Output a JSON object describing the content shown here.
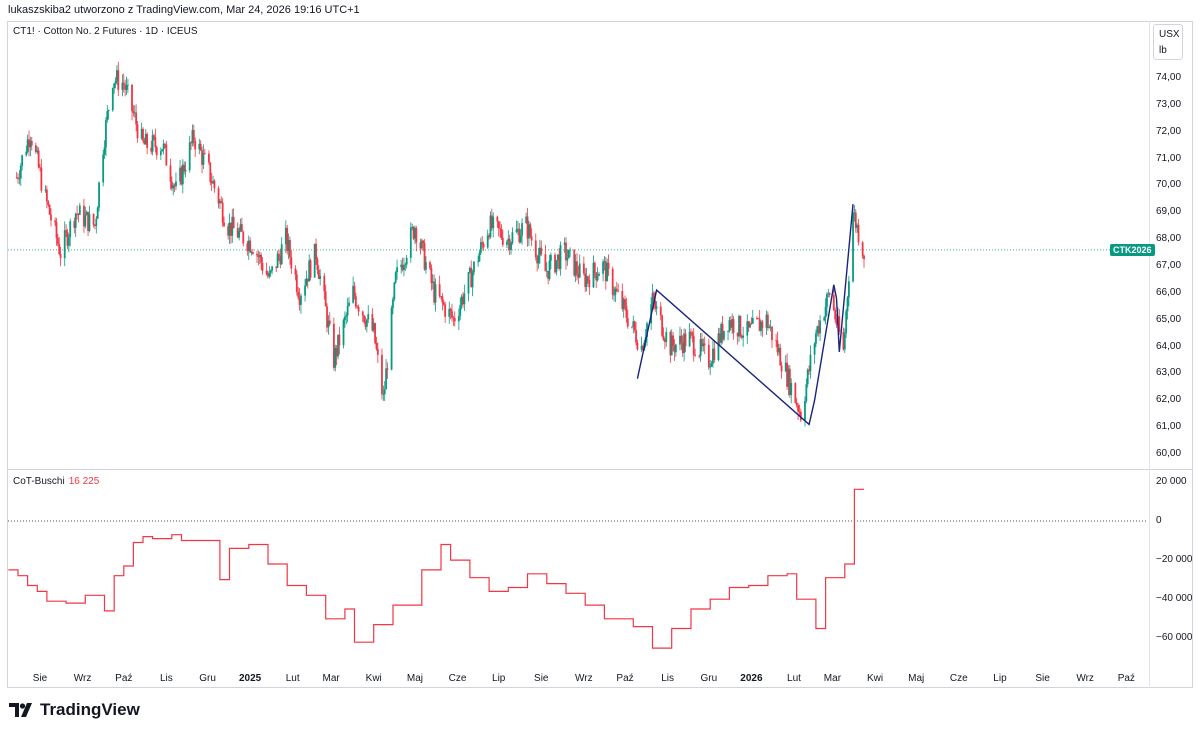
{
  "header": {
    "caption": "lukaszskiba2 utworzono z TradingView.com, Mar 24, 2026 19:16 UTC+1"
  },
  "price_pane": {
    "symbol": "CT1! · Cotton No. 2 Futures · 1D · ICEUS",
    "unit_currency": "USX",
    "unit_measure": "lb",
    "last_price_badge": "CTK2026",
    "y_tick_labels": [
      "74,00",
      "73,00",
      "72,00",
      "71,00",
      "70,00",
      "69,00",
      "68,00",
      "67,00",
      "66,00",
      "65,00",
      "64,00",
      "63,00",
      "62,00",
      "61,00",
      "60,00"
    ]
  },
  "indicator_pane": {
    "name": "CoT-Buschi",
    "value": "16 225",
    "y_tick_labels": [
      "20 000",
      "0",
      "−20 000",
      "−40 000",
      "−60 000"
    ]
  },
  "x_axis": {
    "labels": [
      {
        "text": "Sie",
        "bold": false
      },
      {
        "text": "Wrz",
        "bold": false
      },
      {
        "text": "Paź",
        "bold": false
      },
      {
        "text": "Lis",
        "bold": false
      },
      {
        "text": "Gru",
        "bold": false
      },
      {
        "text": "2025",
        "bold": true
      },
      {
        "text": "Lut",
        "bold": false
      },
      {
        "text": "Mar",
        "bold": false
      },
      {
        "text": "Kwi",
        "bold": false
      },
      {
        "text": "Maj",
        "bold": false
      },
      {
        "text": "Cze",
        "bold": false
      },
      {
        "text": "Lip",
        "bold": false
      },
      {
        "text": "Sie",
        "bold": false
      },
      {
        "text": "Wrz",
        "bold": false
      },
      {
        "text": "Paź",
        "bold": false
      },
      {
        "text": "Lis",
        "bold": false
      },
      {
        "text": "Gru",
        "bold": false
      },
      {
        "text": "2026",
        "bold": true
      },
      {
        "text": "Lut",
        "bold": false
      },
      {
        "text": "Mar",
        "bold": false
      },
      {
        "text": "Kwi",
        "bold": false
      },
      {
        "text": "Maj",
        "bold": false
      },
      {
        "text": "Cze",
        "bold": false
      },
      {
        "text": "Lip",
        "bold": false
      },
      {
        "text": "Sie",
        "bold": false
      },
      {
        "text": "Wrz",
        "bold": false
      },
      {
        "text": "Paź",
        "bold": false
      }
    ]
  },
  "branding": {
    "logo_text": "TradingView"
  },
  "colors": {
    "up": "#089981",
    "down": "#f23645",
    "pattern_line": "#1a237e",
    "last_price_line": "#089981",
    "indicator_line": "#f23645"
  },
  "chart_data": [
    {
      "type": "candlestick",
      "title": "CT1! · Cotton No. 2 Futures · 1D · ICEUS",
      "ylim": [
        59.6,
        75.2
      ],
      "last_price": 67.6,
      "price_path": [
        {
          "date": "2024-07-15",
          "price": 70.3
        },
        {
          "date": "2024-07-25",
          "price": 72.0
        },
        {
          "date": "2024-08-05",
          "price": 69.5
        },
        {
          "date": "2024-08-16",
          "price": 67.5
        },
        {
          "date": "2024-08-27",
          "price": 69.0
        },
        {
          "date": "2024-09-10",
          "price": 68.5
        },
        {
          "date": "2024-09-16",
          "price": 71.5
        },
        {
          "date": "2024-09-23",
          "price": 74.0
        },
        {
          "date": "2024-10-01",
          "price": 73.8
        },
        {
          "date": "2024-10-15",
          "price": 71.5
        },
        {
          "date": "2024-10-29",
          "price": 71.5
        },
        {
          "date": "2024-11-08",
          "price": 69.8
        },
        {
          "date": "2024-11-21",
          "price": 71.8
        },
        {
          "date": "2024-12-02",
          "price": 70.5
        },
        {
          "date": "2024-12-16",
          "price": 68.5
        },
        {
          "date": "2025-01-03",
          "price": 67.8
        },
        {
          "date": "2025-01-15",
          "price": 66.5
        },
        {
          "date": "2025-01-27",
          "price": 68.0
        },
        {
          "date": "2025-02-06",
          "price": 66.0
        },
        {
          "date": "2025-02-18",
          "price": 67.5
        },
        {
          "date": "2025-03-03",
          "price": 63.5
        },
        {
          "date": "2025-03-17",
          "price": 66.0
        },
        {
          "date": "2025-04-01",
          "price": 64.5
        },
        {
          "date": "2025-04-08",
          "price": 62.0
        },
        {
          "date": "2025-04-17",
          "price": 66.5
        },
        {
          "date": "2025-05-01",
          "price": 68.5
        },
        {
          "date": "2025-05-15",
          "price": 66.0
        },
        {
          "date": "2025-05-29",
          "price": 65.0
        },
        {
          "date": "2025-06-10",
          "price": 66.5
        },
        {
          "date": "2025-06-24",
          "price": 68.5
        },
        {
          "date": "2025-07-08",
          "price": 68.0
        },
        {
          "date": "2025-07-21",
          "price": 68.5
        },
        {
          "date": "2025-08-04",
          "price": 66.8
        },
        {
          "date": "2025-08-18",
          "price": 67.5
        },
        {
          "date": "2025-09-01",
          "price": 66.5
        },
        {
          "date": "2025-09-15",
          "price": 67.0
        },
        {
          "date": "2025-09-29",
          "price": 65.5
        },
        {
          "date": "2025-10-13",
          "price": 64.0
        },
        {
          "date": "2025-10-21",
          "price": 65.7
        },
        {
          "date": "2025-11-03",
          "price": 64.0
        },
        {
          "date": "2025-11-17",
          "price": 64.3
        },
        {
          "date": "2025-12-01",
          "price": 63.5
        },
        {
          "date": "2025-12-15",
          "price": 65.0
        },
        {
          "date": "2025-12-29",
          "price": 64.5
        },
        {
          "date": "2026-01-12",
          "price": 65.0
        },
        {
          "date": "2026-01-23",
          "price": 63.5
        },
        {
          "date": "2026-02-06",
          "price": 61.5
        },
        {
          "date": "2026-02-17",
          "price": 64.5
        },
        {
          "date": "2026-02-27",
          "price": 66.0
        },
        {
          "date": "2026-03-09",
          "price": 63.8
        },
        {
          "date": "2026-03-16",
          "price": 69.0
        },
        {
          "date": "2026-03-24",
          "price": 67.5
        }
      ],
      "pattern_lines": [
        {
          "x": "2025-10-10",
          "y": 62.8
        },
        {
          "x": "2025-10-24",
          "y": 66.1
        },
        {
          "x": "2026-02-12",
          "y": 61.1
        },
        {
          "x": "2026-02-16",
          "y": 62.0
        },
        {
          "x": "2026-03-02",
          "y": 66.3
        },
        {
          "x": "2026-03-04",
          "y": 65.8
        },
        {
          "x": "2026-03-06",
          "y": 63.8
        },
        {
          "x": "2026-03-16",
          "y": 69.3
        }
      ]
    },
    {
      "type": "line",
      "title": "CoT-Buschi",
      "ylim": [
        -70000,
        24000
      ],
      "last_value": 16225,
      "points": [
        {
          "date": "2024-07-09",
          "value": -25000
        },
        {
          "date": "2024-07-16",
          "value": -28000
        },
        {
          "date": "2024-07-23",
          "value": -33000
        },
        {
          "date": "2024-07-30",
          "value": -36000
        },
        {
          "date": "2024-08-06",
          "value": -41000
        },
        {
          "date": "2024-08-20",
          "value": -42000
        },
        {
          "date": "2024-09-03",
          "value": -38000
        },
        {
          "date": "2024-09-17",
          "value": -46000
        },
        {
          "date": "2024-09-24",
          "value": -28000
        },
        {
          "date": "2024-10-01",
          "value": -23000
        },
        {
          "date": "2024-10-08",
          "value": -11000
        },
        {
          "date": "2024-10-15",
          "value": -8000
        },
        {
          "date": "2024-10-22",
          "value": -9000
        },
        {
          "date": "2024-11-05",
          "value": -7000
        },
        {
          "date": "2024-11-12",
          "value": -10000
        },
        {
          "date": "2024-12-03",
          "value": -10000
        },
        {
          "date": "2024-12-10",
          "value": -30000
        },
        {
          "date": "2024-12-17",
          "value": -14000
        },
        {
          "date": "2024-12-31",
          "value": -12000
        },
        {
          "date": "2025-01-14",
          "value": -22000
        },
        {
          "date": "2025-01-28",
          "value": -33000
        },
        {
          "date": "2025-02-11",
          "value": -38000
        },
        {
          "date": "2025-02-25",
          "value": -50000
        },
        {
          "date": "2025-03-11",
          "value": -45000
        },
        {
          "date": "2025-03-18",
          "value": -62000
        },
        {
          "date": "2025-04-01",
          "value": -53000
        },
        {
          "date": "2025-04-15",
          "value": -43000
        },
        {
          "date": "2025-05-06",
          "value": -25000
        },
        {
          "date": "2025-05-20",
          "value": -12000
        },
        {
          "date": "2025-05-27",
          "value": -20000
        },
        {
          "date": "2025-06-10",
          "value": -29000
        },
        {
          "date": "2025-06-24",
          "value": -36000
        },
        {
          "date": "2025-07-08",
          "value": -34000
        },
        {
          "date": "2025-07-22",
          "value": -27000
        },
        {
          "date": "2025-08-05",
          "value": -32000
        },
        {
          "date": "2025-08-19",
          "value": -37000
        },
        {
          "date": "2025-09-02",
          "value": -43000
        },
        {
          "date": "2025-09-16",
          "value": -50000
        },
        {
          "date": "2025-10-07",
          "value": -54000
        },
        {
          "date": "2025-10-21",
          "value": -65000
        },
        {
          "date": "2025-11-04",
          "value": -55000
        },
        {
          "date": "2025-11-18",
          "value": -45000
        },
        {
          "date": "2025-12-02",
          "value": -40000
        },
        {
          "date": "2025-12-16",
          "value": -34000
        },
        {
          "date": "2025-12-30",
          "value": -33000
        },
        {
          "date": "2026-01-13",
          "value": -28000
        },
        {
          "date": "2026-01-27",
          "value": -27000
        },
        {
          "date": "2026-02-03",
          "value": -40000
        },
        {
          "date": "2026-02-17",
          "value": -55000
        },
        {
          "date": "2026-02-24",
          "value": -29000
        },
        {
          "date": "2026-03-10",
          "value": -22000
        },
        {
          "date": "2026-03-17",
          "value": 16225
        },
        {
          "date": "2026-03-24",
          "value": 16225
        }
      ]
    }
  ]
}
